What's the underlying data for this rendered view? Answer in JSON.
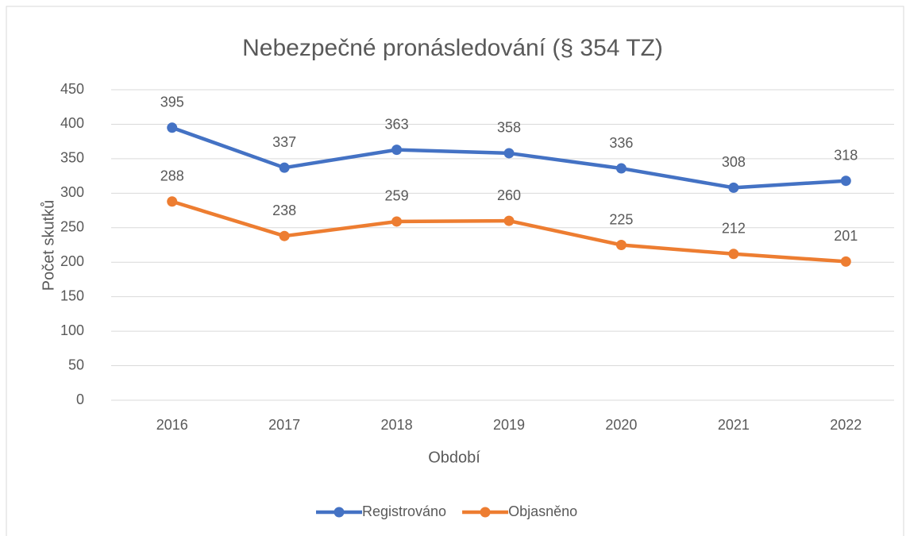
{
  "chart_data": {
    "type": "line",
    "title": "Nebezpečné pronásledování (§ 354 TZ)",
    "x_label": "Období",
    "y_label": "Počet skutků",
    "categories": [
      "2016",
      "2017",
      "2018",
      "2019",
      "2020",
      "2021",
      "2022"
    ],
    "series": [
      {
        "name": "Registrováno",
        "color": "#4472c4",
        "values": [
          395,
          337,
          363,
          358,
          336,
          308,
          318
        ]
      },
      {
        "name": "Objasněno",
        "color": "#ed7d31",
        "values": [
          288,
          238,
          259,
          260,
          225,
          212,
          201
        ]
      }
    ],
    "ylim": [
      0,
      450
    ],
    "yticks": [
      0,
      50,
      100,
      150,
      200,
      250,
      300,
      350,
      400,
      450
    ],
    "grid": true,
    "legend": "bottom"
  }
}
